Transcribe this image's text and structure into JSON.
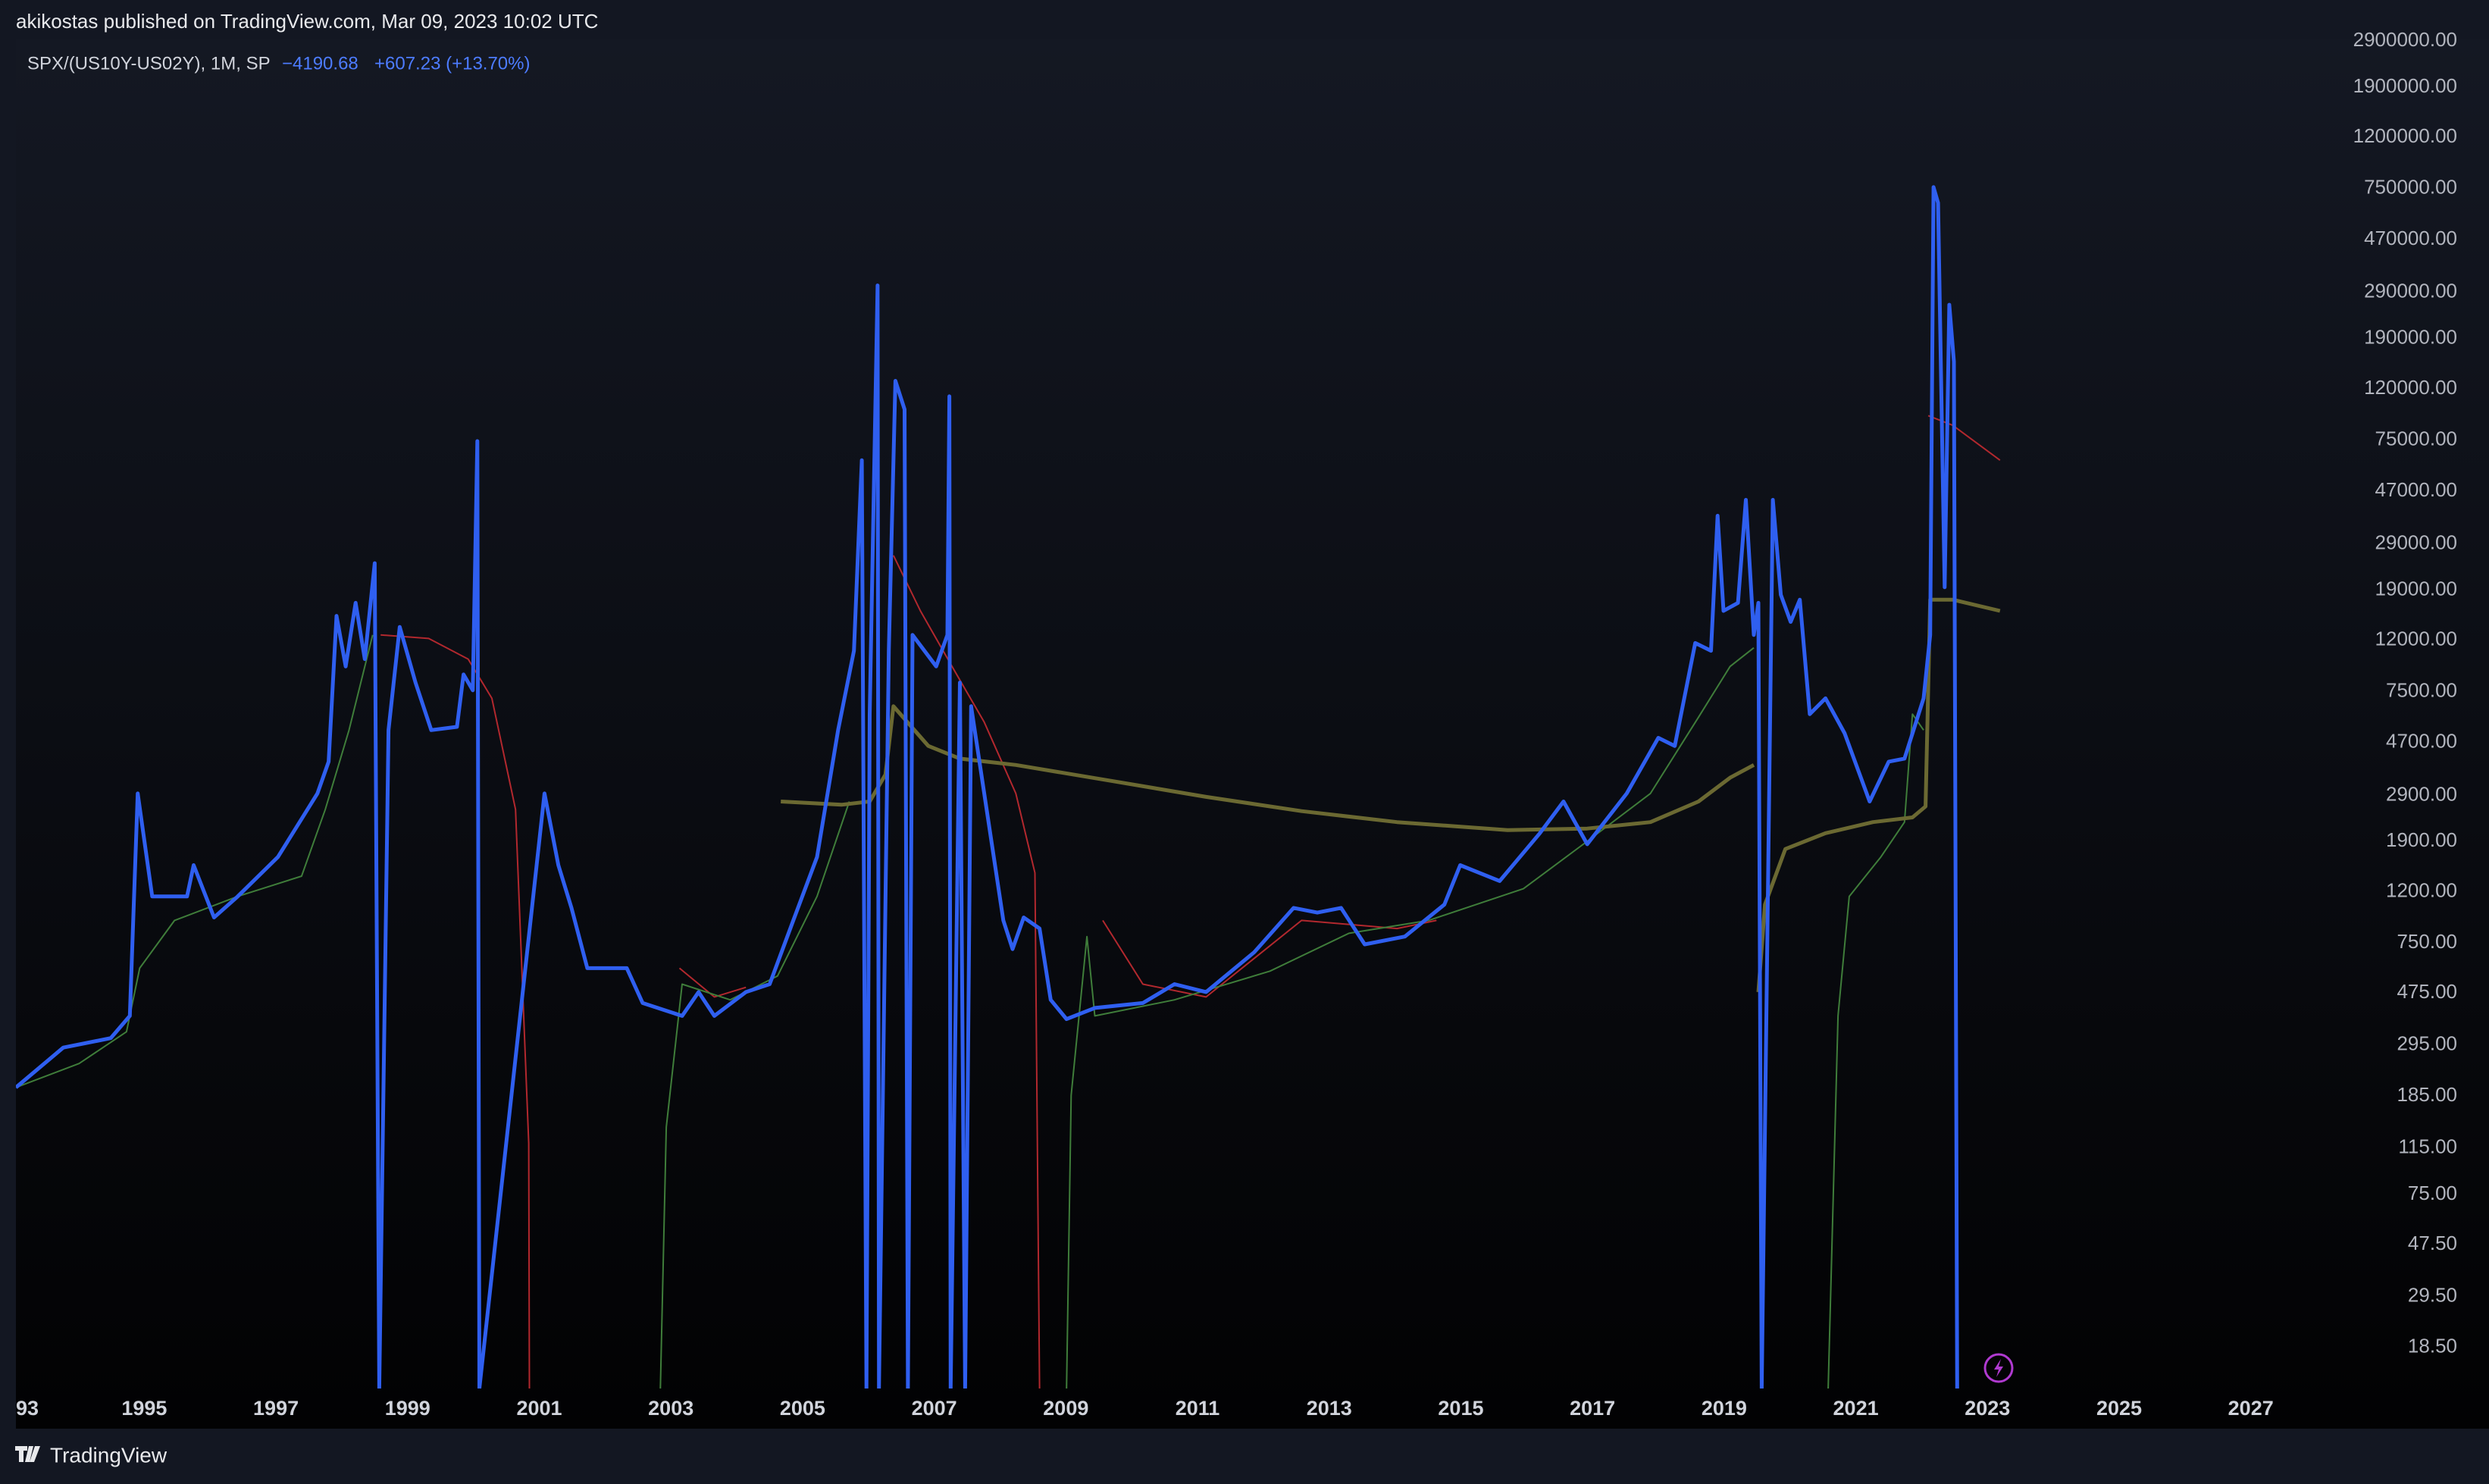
{
  "header": {
    "text": "akikostas published on TradingView.com, Mar 09, 2023 10:02 UTC"
  },
  "footer": {
    "brand": "TradingView"
  },
  "chart_data": {
    "type": "line",
    "symbol": "SPX/(US10Y-US02Y), 1M, SP",
    "legend_value": "−4190.68",
    "legend_change": "+607.23 (+13.70%)",
    "log_scale": true,
    "grid": false,
    "xlim": [
      1993.05,
      2027.89
    ],
    "xticks": [
      {
        "value": 1993,
        "label": "93"
      },
      1995,
      1997,
      1999,
      2001,
      2003,
      2005,
      2007,
      2009,
      2011,
      2013,
      2015,
      2017,
      2019,
      2021,
      2023,
      2025,
      2027
    ],
    "ylim": [
      12.7,
      2940000
    ],
    "yticks": [
      {
        "value": 2900000,
        "label": "2900000.00"
      },
      {
        "value": 1900000,
        "label": "1900000.00"
      },
      {
        "value": 1200000,
        "label": "1200000.00"
      },
      {
        "value": 750000,
        "label": "750000.00"
      },
      {
        "value": 470000,
        "label": "470000.00"
      },
      {
        "value": 290000,
        "label": "290000.00"
      },
      {
        "value": 190000,
        "label": "190000.00"
      },
      {
        "value": 120000,
        "label": "120000.00"
      },
      {
        "value": 75000,
        "label": "75000.00"
      },
      {
        "value": 47000,
        "label": "47000.00"
      },
      {
        "value": 29000,
        "label": "29000.00"
      },
      {
        "value": 19000,
        "label": "19000.00"
      },
      {
        "value": 12000,
        "label": "12000.00"
      },
      {
        "value": 7500,
        "label": "7500.00"
      },
      {
        "value": 4700,
        "label": "4700.00"
      },
      {
        "value": 2900,
        "label": "2900.00"
      },
      {
        "value": 1900,
        "label": "1900.00"
      },
      {
        "value": 1200,
        "label": "1200.00"
      },
      {
        "value": 750,
        "label": "750.00"
      },
      {
        "value": 475,
        "label": "475.00"
      },
      {
        "value": 295,
        "label": "295.00"
      },
      {
        "value": 185,
        "label": "185.00"
      },
      {
        "value": 115,
        "label": "115.00"
      },
      {
        "value": 75,
        "label": "75.00"
      },
      {
        "value": 47.5,
        "label": "47.50"
      },
      {
        "value": 29.5,
        "label": "29.50"
      },
      {
        "value": 18.5,
        "label": "18.50"
      }
    ],
    "series": [
      {
        "color": "#b2282e",
        "width": 2,
        "x": [
          1998.59,
          1999.32,
          1999.92,
          2000.28,
          2000.64,
          2000.84,
          2000.85,
          2002.0,
          2003.13,
          2003.66,
          2004.14,
          2006.0,
          2006.38,
          2006.79,
          2007.27,
          2007.76,
          2008.24,
          2008.53,
          2008.6,
          2009.2,
          2009.56,
          2010.17,
          2011.13,
          2012.58,
          2014.03,
          2014.63,
          2018.0,
          2022.1,
          2022.47,
          2023.19
        ],
        "values": [
          12600,
          12200,
          10100,
          7050,
          2550,
          120,
          -500,
          null,
          596,
          458,
          500,
          null,
          26100,
          15700,
          9440,
          5670,
          2950,
          1426,
          -500,
          null,
          923,
          515,
          458,
          923,
          857,
          923,
          null,
          93800,
          85900,
          62400
        ]
      },
      {
        "color": "#3f7d3a",
        "width": 2,
        "x": [
          1993.05,
          1994.01,
          1994.73,
          1994.93,
          1995.46,
          1996.42,
          1997.39,
          1997.75,
          1998.11,
          1998.47,
          1998.6,
          2002.84,
          2002.93,
          2003.17,
          2003.9,
          2004.62,
          2005.22,
          2005.71,
          2006.0,
          2009.01,
          2009.08,
          2009.32,
          2009.44,
          2010.65,
          2012.1,
          2013.3,
          2014.51,
          2015.95,
          2016.92,
          2017.88,
          2018.61,
          2019.09,
          2019.45,
          2020.0,
          2020.58,
          2020.73,
          2020.9,
          2021.38,
          2021.74,
          2021.86,
          2022.03
        ],
        "values": [
          200,
          249,
          333,
          596,
          923,
          1150,
          1384,
          2550,
          5270,
          12600,
          null,
          -500,
          139,
          515,
          446,
          555,
          1150,
          2742,
          null,
          -500,
          186,
          796,
          385,
          446,
          580,
          820,
          923,
          1233,
          1905,
          2950,
          5930,
          9440,
          11200,
          null,
          -500,
          385,
          1150,
          1650,
          2270,
          6100,
          5270
        ]
      },
      {
        "color": "#6b6932",
        "width": 5,
        "x": [
          2004.67,
          2005.59,
          2006.02,
          2006.26,
          2006.38,
          2006.91,
          2007.39,
          2008.24,
          2009.69,
          2011.13,
          2012.58,
          2014.03,
          2015.71,
          2016.92,
          2017.88,
          2018.61,
          2019.09,
          2019.45,
          2019.5,
          2019.52,
          2019.62,
          2019.93,
          2020.54,
          2021.26,
          2021.86,
          2022.06,
          2022.13,
          2022.47,
          2023.19
        ],
        "values": [
          2742,
          2660,
          2742,
          3510,
          6560,
          4560,
          4060,
          3830,
          3310,
          2860,
          2510,
          2270,
          2110,
          2140,
          2270,
          2742,
          3410,
          3830,
          null,
          479,
          1067,
          1774,
          2051,
          2270,
          2370,
          2620,
          17400,
          17400,
          15700
        ]
      },
      {
        "color": "#2f5ff0",
        "width": 5,
        "x": [
          1993.05,
          1993.77,
          1994.49,
          1994.78,
          1994.9,
          1995.12,
          1995.65,
          1995.75,
          1996.06,
          1996.42,
          1997.03,
          1997.63,
          1997.8,
          1997.92,
          1998.06,
          1998.21,
          1998.35,
          1998.5,
          1998.57,
          1998.71,
          1998.88,
          1999.12,
          1999.36,
          1999.75,
          1999.85,
          1999.99,
          2000.06,
          2000.09,
          2001.08,
          2001.29,
          2001.49,
          2001.73,
          2002.33,
          2002.57,
          2003.17,
          2003.42,
          2003.66,
          2004.14,
          2004.5,
          2004.86,
          2005.22,
          2005.54,
          2005.78,
          2005.9,
          2005.97,
          2006.02,
          2006.14,
          2006.16,
          2006.31,
          2006.41,
          2006.55,
          2006.6,
          2006.67,
          2007.03,
          2007.2,
          2007.23,
          2007.25,
          2007.39,
          2007.47,
          2007.56,
          2007.76,
          2008.05,
          2008.19,
          2008.36,
          2008.6,
          2008.77,
          2009.01,
          2009.44,
          2010.17,
          2010.65,
          2011.13,
          2011.86,
          2012.46,
          2012.82,
          2013.18,
          2013.54,
          2014.15,
          2014.75,
          2014.99,
          2015.59,
          2016.2,
          2016.56,
          2016.92,
          2017.52,
          2018.0,
          2018.25,
          2018.56,
          2018.8,
          2018.9,
          2018.99,
          2019.21,
          2019.33,
          2019.45,
          2019.52,
          2019.57,
          2019.74,
          2019.86,
          2020.01,
          2020.15,
          2020.3,
          2020.54,
          2020.83,
          2021.21,
          2021.5,
          2021.74,
          2022.03,
          2022.13,
          2022.18,
          2022.25,
          2022.35,
          2022.42,
          2022.49,
          2022.54
        ],
        "values": [
          200,
          288,
          314,
          385,
          2950,
          1150,
          1150,
          1530,
          948,
          1150,
          1650,
          2950,
          3950,
          15000,
          9440,
          16900,
          10100,
          24300,
          -2000,
          5270,
          13550,
          8150,
          5270,
          5430,
          8770,
          7590,
          74300,
          -3000,
          2950,
          1530,
          1035,
          596,
          596,
          433,
          385,
          479,
          385,
          479,
          515,
          923,
          1650,
          5270,
          10900,
          62400,
          -1500,
          6100,
          309000,
          -2500,
          10900,
          129000,
          99300,
          -3000,
          12600,
          9440,
          12600,
          112000,
          -2000,
          8150,
          -1000,
          6560,
          2950,
          923,
          710,
          948,
          857,
          446,
          374,
          414,
          433,
          515,
          479,
          689,
          1035,
          991,
          1035,
          741,
          796,
          1067,
          1530,
          1324,
          2051,
          2742,
          1853,
          2950,
          4910,
          4560,
          11700,
          10900,
          37500,
          15700,
          16900,
          43400,
          12600,
          16900,
          -2500,
          43400,
          18200,
          14200,
          17400,
          6100,
          7050,
          5120,
          2742,
          3950,
          4060,
          7050,
          12600,
          760000,
          658000,
          19500,
          259000,
          154000,
          -4190.68
        ]
      }
    ]
  }
}
